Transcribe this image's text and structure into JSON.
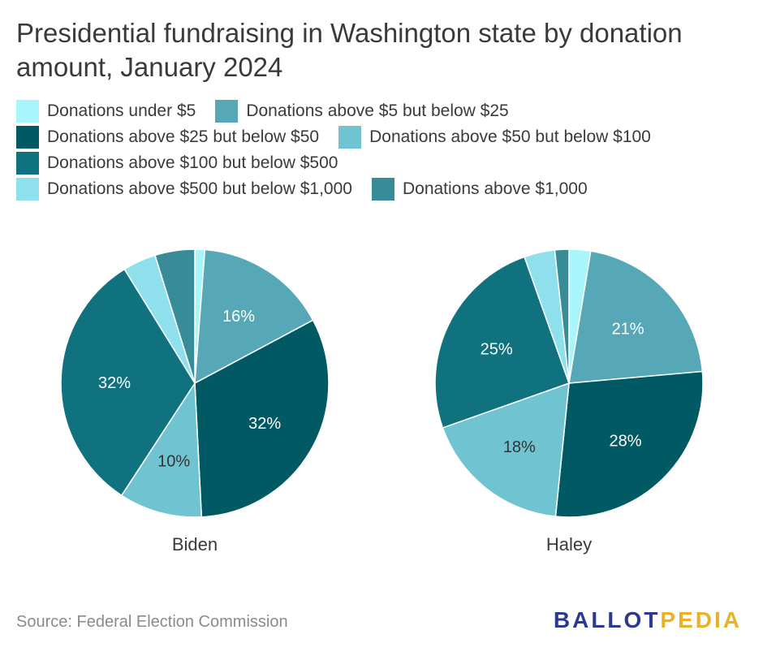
{
  "title": "Presidential fundraising in Washington state by donation amount, January 2024",
  "source": "Source: Federal Election Commission",
  "logo": {
    "part1": "BALLOT",
    "part2": "PEDIA"
  },
  "legend": [
    {
      "label": "Donations under $5",
      "color": "#a8f6fb"
    },
    {
      "label": "Donations above $5 but below $25",
      "color": "#56a8b6"
    },
    {
      "label": "Donations above $25 but below $50",
      "color": "#005963"
    },
    {
      "label": "Donations above $50 but below $100",
      "color": "#70c4d2"
    },
    {
      "label": "Donations above $100 but below $500",
      "color": "#10727e"
    },
    {
      "label": "Donations above $500 but below $1,000",
      "color": "#8ee1ec"
    },
    {
      "label": "Donations above $1,000",
      "color": "#378c98"
    }
  ],
  "chart_data": [
    {
      "type": "pie",
      "title": "Biden",
      "categories": [
        "Donations under $5",
        "Donations above $5 but below $25",
        "Donations above $25 but below $50",
        "Donations above $50 but below $100",
        "Donations above $100 but below $500",
        "Donations above $500 but below $1,000",
        "Donations above $1,000"
      ],
      "values": [
        1.2,
        16,
        32,
        10,
        32,
        4,
        4.8
      ],
      "labels": [
        "",
        "16%",
        "32%",
        "10%",
        "32%",
        "",
        ""
      ],
      "colors": [
        "#a8f6fb",
        "#56a8b6",
        "#005963",
        "#70c4d2",
        "#10727e",
        "#8ee1ec",
        "#378c98"
      ],
      "label_colors": [
        "#333333",
        "#ffffff",
        "#ffffff",
        "#333333",
        "#ffffff",
        "#333333",
        "#ffffff"
      ]
    },
    {
      "type": "pie",
      "title": "Haley",
      "categories": [
        "Donations under $5",
        "Donations above $5 but below $25",
        "Donations above $25 but below $50",
        "Donations above $50 but below $100",
        "Donations above $100 but below $500",
        "Donations above $500 but below $1,000",
        "Donations above $1,000"
      ],
      "values": [
        2.6,
        21,
        28,
        18,
        25,
        3.7,
        1.7
      ],
      "labels": [
        "",
        "21%",
        "28%",
        "18%",
        "25%",
        "",
        ""
      ],
      "colors": [
        "#a8f6fb",
        "#56a8b6",
        "#005963",
        "#70c4d2",
        "#10727e",
        "#8ee1ec",
        "#378c98"
      ],
      "label_colors": [
        "#333333",
        "#ffffff",
        "#ffffff",
        "#333333",
        "#ffffff",
        "#333333",
        "#ffffff"
      ]
    }
  ]
}
